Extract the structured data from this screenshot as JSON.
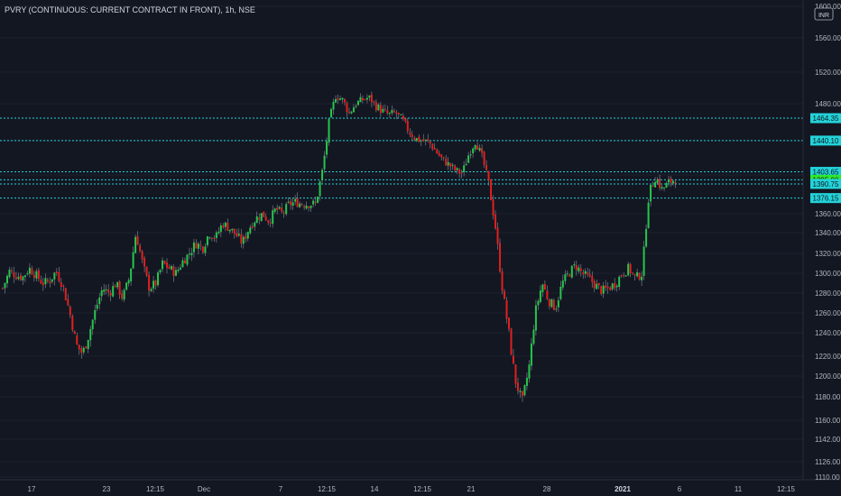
{
  "chart_data": {
    "type": "candlestick",
    "title": "PVRY (CONTINUOUS: CURRENT CONTRACT IN FRONT), 1h, NSE",
    "currency": "INR",
    "y_axis": {
      "ticks": [
        "1600.00",
        "1560.00",
        "1520.00",
        "1480.00",
        "1440.00",
        "1400.00",
        "1360.00",
        "1340.00",
        "1320.00",
        "1300.00",
        "1280.00",
        "1260.00",
        "1240.00",
        "1220.00",
        "1200.00",
        "1180.00",
        "1160.00",
        "1142.00",
        "1126.00",
        "1110.00"
      ],
      "range": [
        1110,
        1600
      ]
    },
    "x_axis": {
      "ticks": [
        "17",
        "23",
        "12:15",
        "Dec",
        "7",
        "12:15",
        "14",
        "12:15",
        "21",
        "28",
        "2021",
        "6",
        "11",
        "12:15"
      ],
      "bold_ticks": [
        "2021"
      ]
    },
    "horizontal_levels": [
      {
        "label": "1464.35",
        "value": 1464.35
      },
      {
        "label": "1440.10",
        "value": 1440.1
      },
      {
        "label": "1403.65",
        "value": 1403.65
      },
      {
        "label": "1395.00",
        "value": 1395.0
      },
      {
        "label": "1390.75",
        "value": 1390.75
      },
      {
        "label": "1376.15",
        "value": 1376.15
      }
    ],
    "current_price": "1395.00",
    "price_path": [
      1285,
      1302,
      1298,
      1296,
      1305,
      1298,
      1290,
      1292,
      1302,
      1288,
      1262,
      1230,
      1222,
      1240,
      1265,
      1285,
      1280,
      1290,
      1275,
      1295,
      1340,
      1310,
      1285,
      1290,
      1310,
      1305,
      1300,
      1312,
      1320,
      1330,
      1325,
      1340,
      1335,
      1350,
      1345,
      1338,
      1330,
      1345,
      1355,
      1360,
      1352,
      1365,
      1360,
      1370,
      1372,
      1370,
      1370,
      1370,
      1405,
      1460,
      1490,
      1485,
      1470,
      1480,
      1485,
      1488,
      1478,
      1472,
      1468,
      1470,
      1462,
      1450,
      1442,
      1440,
      1438,
      1428,
      1418,
      1412,
      1405,
      1402,
      1425,
      1440,
      1420,
      1390,
      1345,
      1285,
      1240,
      1195,
      1175,
      1208,
      1262,
      1290,
      1272,
      1265,
      1290,
      1300,
      1308,
      1300,
      1295,
      1288,
      1282,
      1285,
      1290,
      1300,
      1305,
      1295,
      1300,
      1380,
      1398,
      1385,
      1392,
      1396
    ],
    "colors": {
      "up": "#26c64b",
      "down": "#e0201f",
      "level": "#22d3d9",
      "current": "#2ee82e",
      "background": "#131722"
    }
  }
}
